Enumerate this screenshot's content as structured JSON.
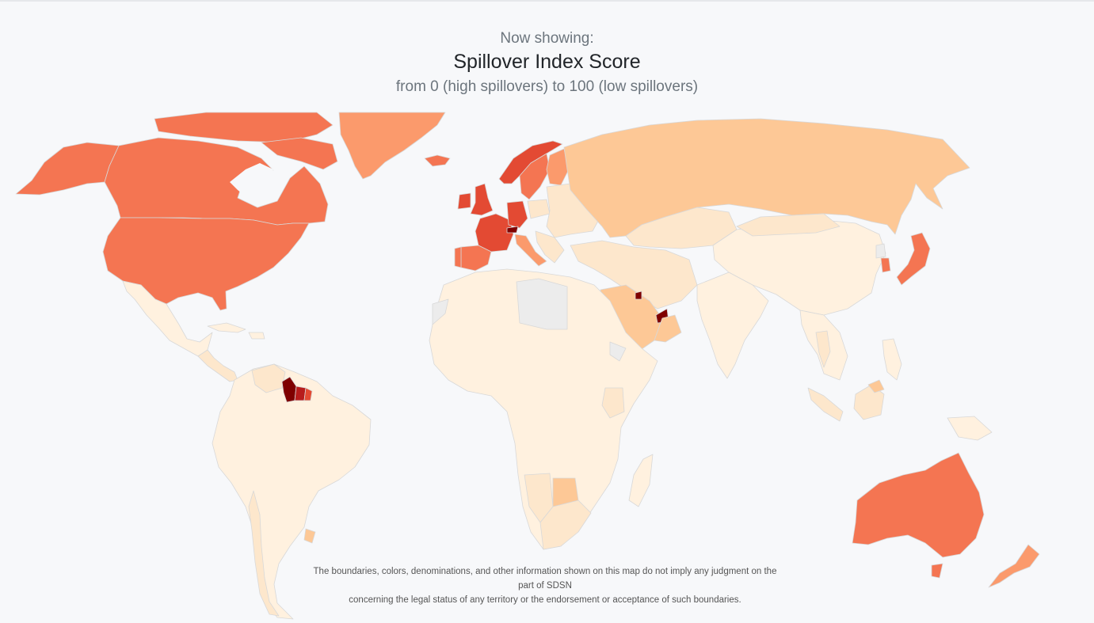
{
  "header": {
    "now_showing": "Now showing:",
    "title": "Spillover Index Score",
    "subtitle": "from 0 (high spillovers) to 100 (low spillovers)"
  },
  "map": {
    "projection": "Miller cylindrical",
    "no_data_color": "#ececec",
    "color_scale": [
      "#fff1df",
      "#fde7cc",
      "#fdc896",
      "#fb9a6c",
      "#f47552",
      "#e34a33",
      "#b71c1c",
      "#7f0000"
    ]
  },
  "disclaimer": {
    "line1": "The boundaries, colors, denominations, and other information shown on this map do not imply any judgment on the part of SDSN",
    "line2": "concerning the legal status of any territory or the endorsement or acceptance of such boundaries."
  }
}
